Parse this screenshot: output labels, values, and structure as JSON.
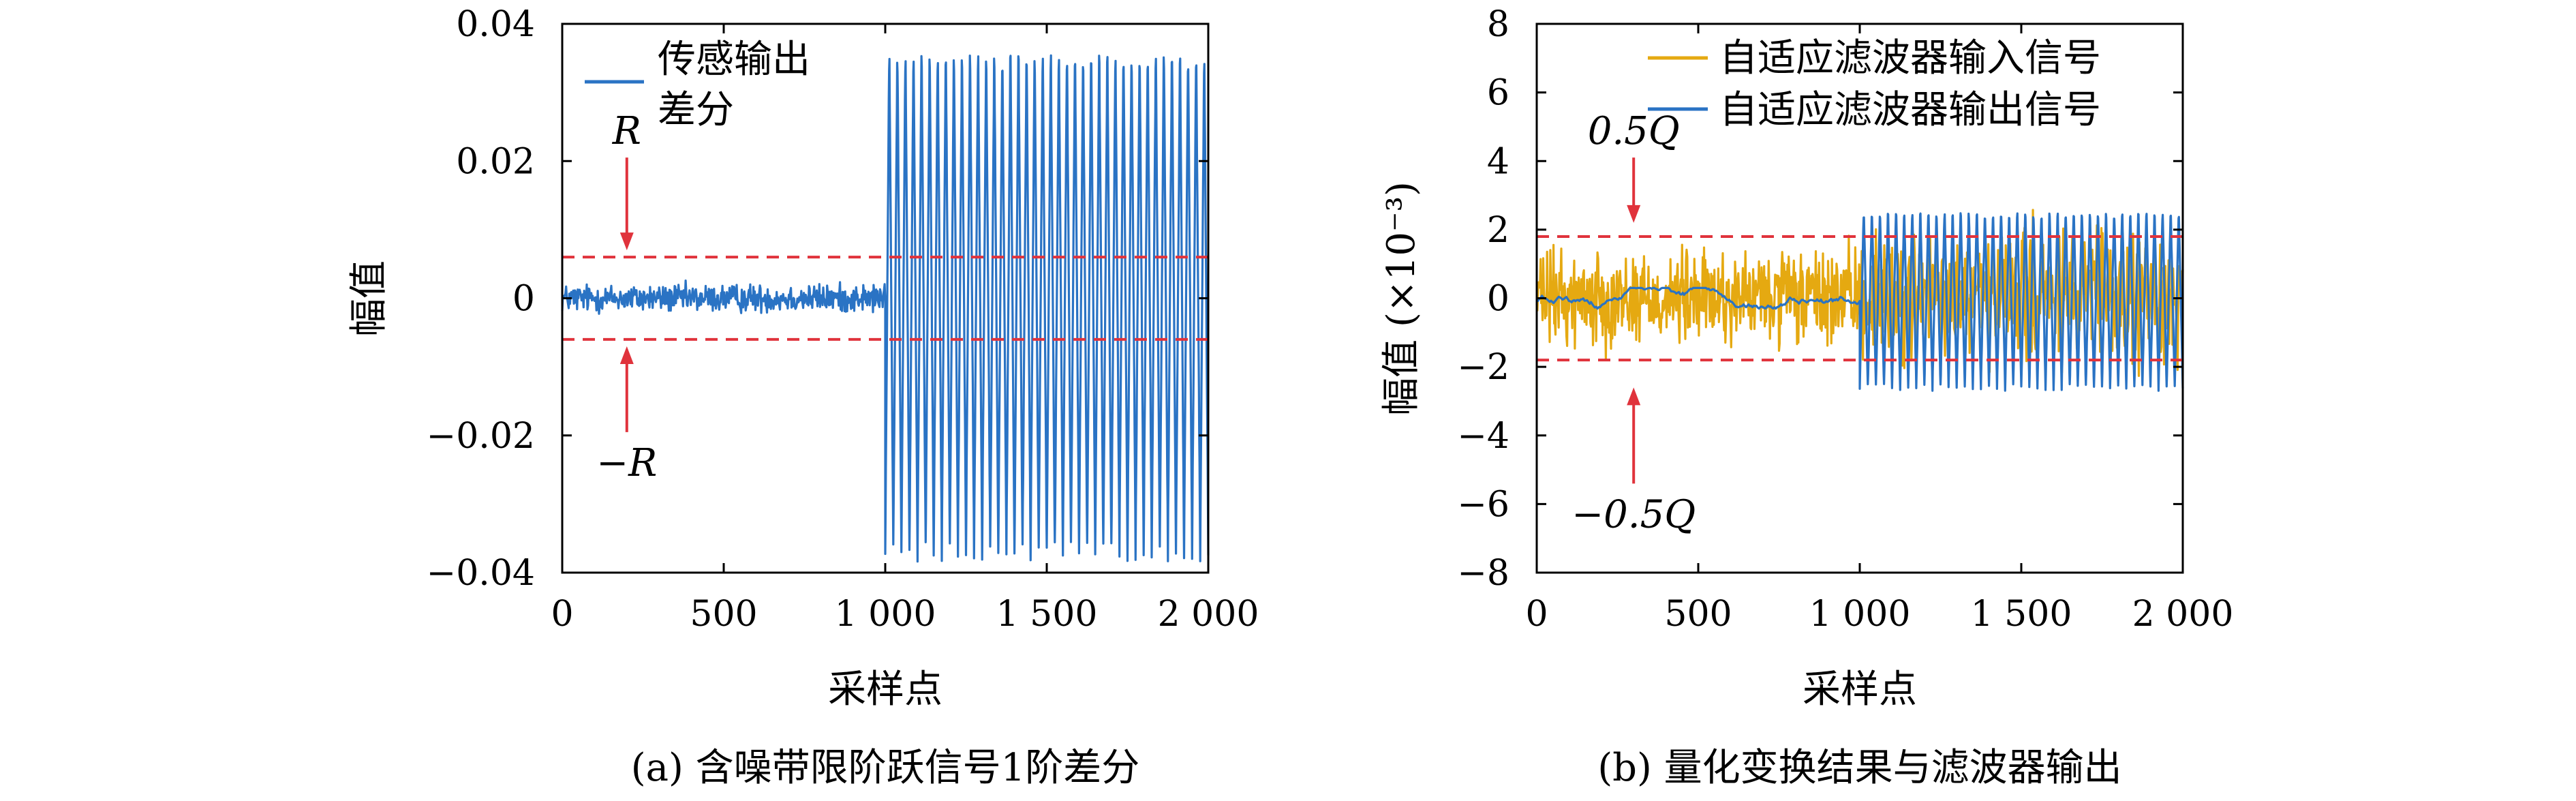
{
  "chart_data": [
    {
      "type": "line",
      "caption": "(a) 含噪带限阶跃信号1阶差分",
      "xlabel": "采样点",
      "ylabel": "幅值",
      "xlim": [
        0,
        2000
      ],
      "ylim": [
        -0.04,
        0.04
      ],
      "xticks": [
        0,
        500,
        1000,
        1500,
        2000
      ],
      "xtick_labels": [
        "0",
        "500",
        "1 000",
        "1 500",
        "2 000"
      ],
      "yticks": [
        -0.04,
        -0.02,
        0,
        0.02,
        0.04
      ],
      "ytick_labels": [
        "−0.04",
        "−0.02",
        "0",
        "0.02",
        "0.04"
      ],
      "legend": {
        "position": "top-left",
        "entries": [
          {
            "label_lines": [
              "传感输出",
              "差分"
            ],
            "color": "#2a73c4"
          }
        ]
      },
      "series": [
        {
          "name": "传感输出差分",
          "color": "#2a73c4",
          "segments": [
            {
              "x_range": [
                0,
                1000
              ],
              "pattern": "noise",
              "amplitude": 0.003
            },
            {
              "x_range": [
                1000,
                2000
              ],
              "pattern": "oscillation",
              "amplitude": 0.037,
              "cycles": 40
            }
          ]
        }
      ],
      "thresholds": [
        {
          "y": 0.006,
          "label": "R",
          "color": "#e0333c",
          "style": "dashed"
        },
        {
          "y": -0.006,
          "label": "−R",
          "color": "#e0333c",
          "style": "dashed"
        }
      ],
      "annotations": [
        {
          "text": "R",
          "x": 200,
          "y": 0.0225,
          "arrow_to_y": 0.007
        },
        {
          "text": "−R",
          "x": 200,
          "y": -0.0215,
          "arrow_to_y": -0.007
        }
      ],
      "grid": false
    },
    {
      "type": "line",
      "caption": "(b) 量化变换结果与滤波器输出",
      "xlabel": "采样点",
      "ylabel": "幅值 (×10⁻³)",
      "xlim": [
        0,
        2000
      ],
      "ylim": [
        -8,
        8
      ],
      "xticks": [
        0,
        500,
        1000,
        1500,
        2000
      ],
      "xtick_labels": [
        "0",
        "500",
        "1 000",
        "1 500",
        "2 000"
      ],
      "yticks": [
        -8,
        -6,
        -4,
        -2,
        0,
        2,
        4,
        6,
        8
      ],
      "ytick_labels": [
        "−8",
        "−6",
        "−4",
        "−2",
        "0",
        "2",
        "4",
        "6",
        "8"
      ],
      "legend": {
        "position": "top-right",
        "entries": [
          {
            "label": "自适应滤波器输入信号",
            "color": "#e5a911"
          },
          {
            "label": "自适应滤波器输出信号",
            "color": "#2a73c4"
          }
        ]
      },
      "series": [
        {
          "name": "自适应滤波器输入信号",
          "color": "#e5a911",
          "segments": [
            {
              "x_range": [
                0,
                1000
              ],
              "pattern": "noise",
              "amplitude": 2.0
            },
            {
              "x_range": [
                1000,
                2000
              ],
              "pattern": "noise",
              "amplitude": 2.8
            }
          ]
        },
        {
          "name": "自适应滤波器输出信号",
          "color": "#2a73c4",
          "segments": [
            {
              "x_range": [
                0,
                1000
              ],
              "pattern": "smooth",
              "amplitude": 0.3
            },
            {
              "x_range": [
                1000,
                2000
              ],
              "pattern": "oscillation",
              "amplitude": 2.6,
              "cycles": 40
            }
          ]
        }
      ],
      "thresholds": [
        {
          "y": 1.8,
          "label": "0.5Q",
          "color": "#e0333c",
          "style": "dashed"
        },
        {
          "y": -1.8,
          "label": "−0.5Q",
          "color": "#e0333c",
          "style": "dashed"
        }
      ],
      "annotations": [
        {
          "text": "0.5Q",
          "x": 300,
          "y": 4.5,
          "arrow_to_y": 2.2
        },
        {
          "text": "−0.5Q",
          "x": 300,
          "y": -5.8,
          "arrow_to_y": -2.6
        }
      ],
      "grid": false
    }
  ]
}
